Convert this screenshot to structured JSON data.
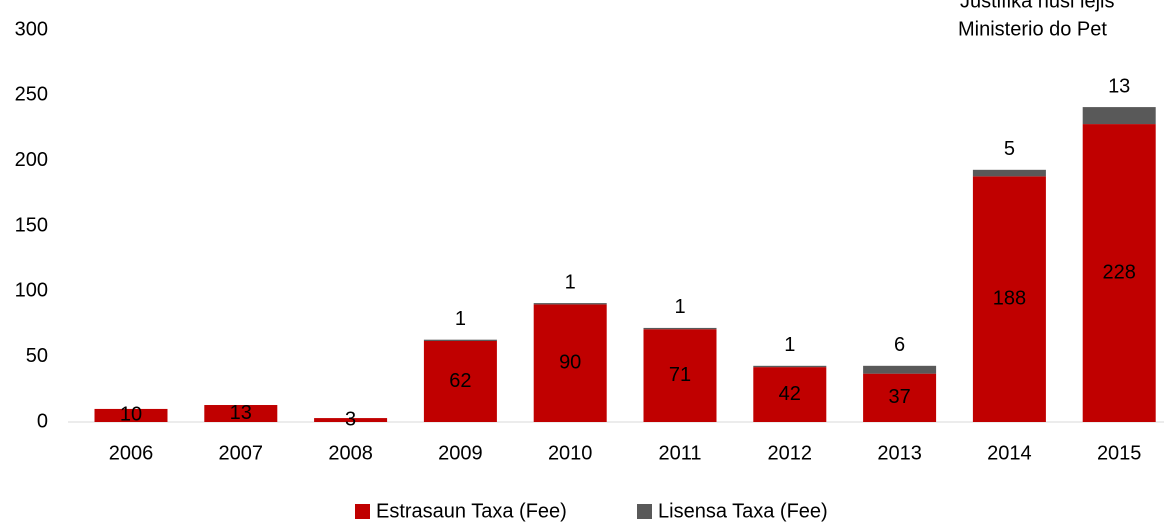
{
  "chart_data": {
    "type": "stacked_bar",
    "annotations": [
      "Justifika husi lejis",
      "Ministerio do Pet"
    ],
    "categories": [
      "2006",
      "2007",
      "2008",
      "2009",
      "2010",
      "2011",
      "2012",
      "2013",
      "2014",
      "2015"
    ],
    "series": [
      {
        "name": "Estrasaun Taxa (Fee)",
        "color": "#c00000",
        "values": [
          10,
          13,
          3,
          62,
          90,
          71,
          42,
          37,
          188,
          228
        ]
      },
      {
        "name": "Lisensa Taxa (Fee)",
        "color": "#595959",
        "values": [
          0,
          0,
          0,
          1,
          1,
          1,
          1,
          6,
          5,
          13
        ]
      }
    ],
    "ylim": [
      0,
      300
    ],
    "yticks": [
      0,
      50,
      100,
      150,
      200,
      250,
      300
    ],
    "grid": false,
    "legend": "bottom"
  }
}
